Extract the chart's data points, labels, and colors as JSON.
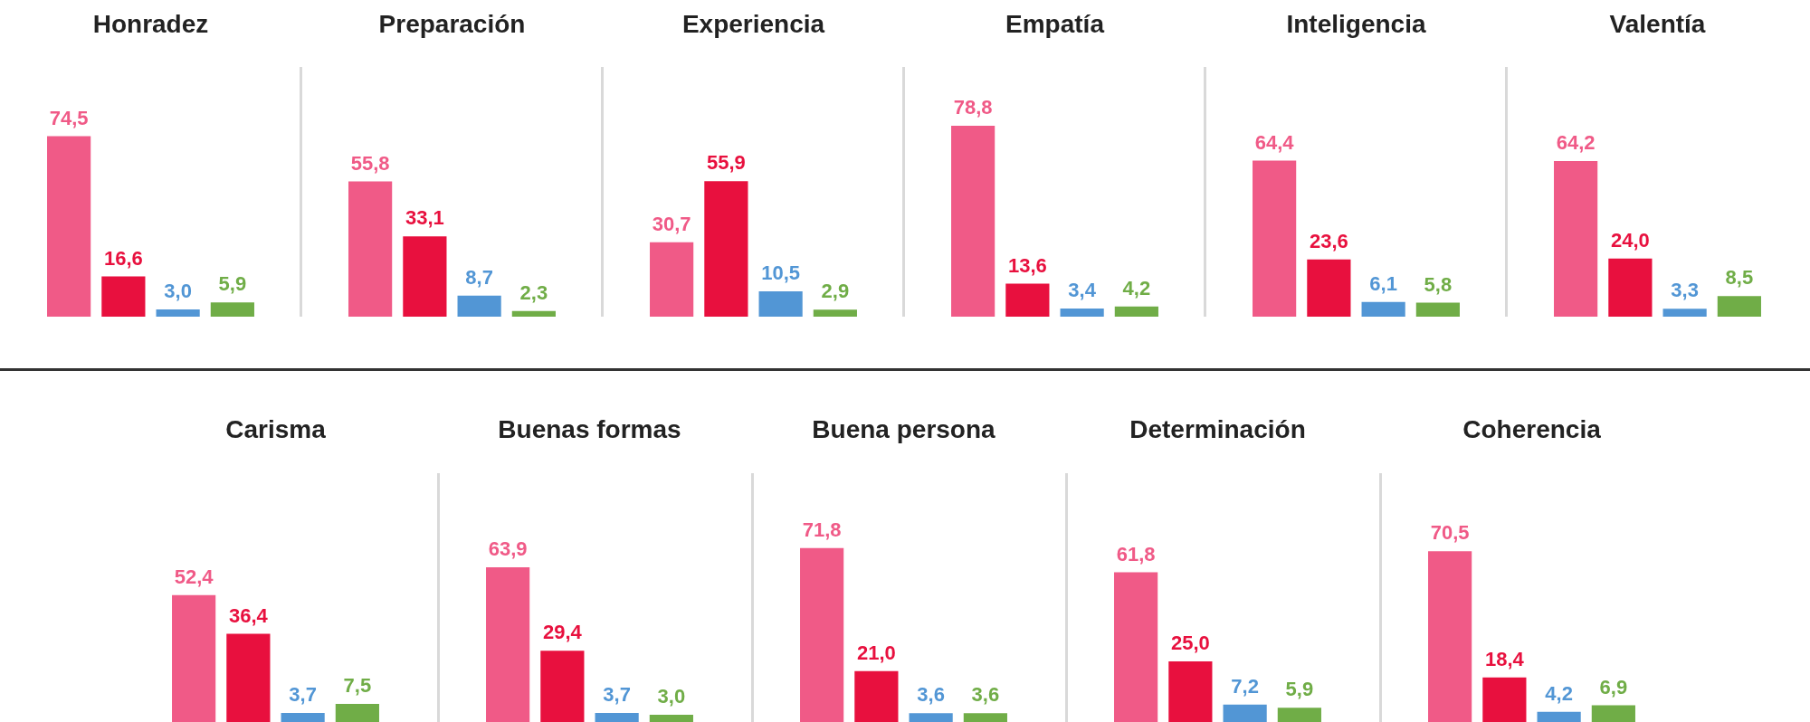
{
  "chart_data": [
    {
      "type": "bar",
      "title": "Honradez",
      "categories": [
        null,
        null,
        null,
        null
      ],
      "values": [
        74.5,
        16.6,
        3.0,
        5.9
      ],
      "colors": [
        "#f05a87",
        "#e8103e",
        "#5296d5",
        "#70ad47"
      ],
      "value_labels": [
        "74,5",
        "16,6",
        "3,0",
        "5,9"
      ],
      "tick_labels": false,
      "grid": false,
      "legend": false
    },
    {
      "type": "bar",
      "title": "Preparación",
      "categories": [
        null,
        null,
        null,
        null
      ],
      "values": [
        55.8,
        33.1,
        8.7,
        2.3
      ],
      "colors": [
        "#f05a87",
        "#e8103e",
        "#5296d5",
        "#70ad47"
      ],
      "value_labels": [
        "55,8",
        "33,1",
        "8,7",
        "2,3"
      ],
      "tick_labels": false,
      "grid": false,
      "legend": false
    },
    {
      "type": "bar",
      "title": "Experiencia",
      "categories": [
        null,
        null,
        null,
        null
      ],
      "values": [
        30.7,
        55.9,
        10.5,
        2.9
      ],
      "colors": [
        "#f05a87",
        "#e8103e",
        "#5296d5",
        "#70ad47"
      ],
      "value_labels": [
        "30,7",
        "55,9",
        "10,5",
        "2,9"
      ],
      "tick_labels": false,
      "grid": false,
      "legend": false
    },
    {
      "type": "bar",
      "title": "Empatía",
      "categories": [
        null,
        null,
        null,
        null
      ],
      "values": [
        78.8,
        13.6,
        3.4,
        4.2
      ],
      "colors": [
        "#f05a87",
        "#e8103e",
        "#5296d5",
        "#70ad47"
      ],
      "value_labels": [
        "78,8",
        "13,6",
        "3,4",
        "4,2"
      ],
      "tick_labels": false,
      "grid": false,
      "legend": false
    },
    {
      "type": "bar",
      "title": "Inteligencia",
      "categories": [
        null,
        null,
        null,
        null
      ],
      "values": [
        64.4,
        23.6,
        6.1,
        5.8
      ],
      "colors": [
        "#f05a87",
        "#e8103e",
        "#5296d5",
        "#70ad47"
      ],
      "value_labels": [
        "64,4",
        "23,6",
        "6,1",
        "5,8"
      ],
      "tick_labels": false,
      "grid": false,
      "legend": false
    },
    {
      "type": "bar",
      "title": "Valentía",
      "categories": [
        null,
        null,
        null,
        null
      ],
      "values": [
        64.2,
        24.0,
        3.3,
        8.5
      ],
      "colors": [
        "#f05a87",
        "#e8103e",
        "#5296d5",
        "#70ad47"
      ],
      "value_labels": [
        "64,2",
        "24,0",
        "3,3",
        "8,5"
      ],
      "tick_labels": false,
      "grid": false,
      "legend": false
    },
    {
      "type": "bar",
      "title": "Carisma",
      "categories": [
        null,
        null,
        null,
        null
      ],
      "values": [
        52.4,
        36.4,
        3.7,
        7.5
      ],
      "colors": [
        "#f05a87",
        "#e8103e",
        "#5296d5",
        "#70ad47"
      ],
      "value_labels": [
        "52,4",
        "36,4",
        "3,7",
        "7,5"
      ],
      "tick_labels": false,
      "grid": false,
      "legend": false
    },
    {
      "type": "bar",
      "title": "Buenas formas",
      "categories": [
        null,
        null,
        null,
        null
      ],
      "values": [
        63.9,
        29.4,
        3.7,
        3.0
      ],
      "colors": [
        "#f05a87",
        "#e8103e",
        "#5296d5",
        "#70ad47"
      ],
      "value_labels": [
        "63,9",
        "29,4",
        "3,7",
        "3,0"
      ],
      "tick_labels": false,
      "grid": false,
      "legend": false
    },
    {
      "type": "bar",
      "title": "Buena persona",
      "categories": [
        null,
        null,
        null,
        null
      ],
      "values": [
        71.8,
        21.0,
        3.6,
        3.6
      ],
      "colors": [
        "#f05a87",
        "#e8103e",
        "#5296d5",
        "#70ad47"
      ],
      "value_labels": [
        "71,8",
        "21,0",
        "3,6",
        "3,6"
      ],
      "tick_labels": false,
      "grid": false,
      "legend": false
    },
    {
      "type": "bar",
      "title": "Determinación",
      "categories": [
        null,
        null,
        null,
        null
      ],
      "values": [
        61.8,
        25.0,
        7.2,
        5.9
      ],
      "colors": [
        "#f05a87",
        "#e8103e",
        "#5296d5",
        "#70ad47"
      ],
      "value_labels": [
        "61,8",
        "25,0",
        "7,2",
        "5,9"
      ],
      "tick_labels": false,
      "grid": false,
      "legend": false
    },
    {
      "type": "bar",
      "title": "Coherencia",
      "categories": [
        null,
        null,
        null,
        null
      ],
      "values": [
        70.5,
        18.4,
        4.2,
        6.9
      ],
      "colors": [
        "#f05a87",
        "#e8103e",
        "#5296d5",
        "#70ad47"
      ],
      "value_labels": [
        "70,5",
        "18,4",
        "4,2",
        "6,9"
      ],
      "tick_labels": false,
      "grid": false,
      "legend": false
    }
  ]
}
